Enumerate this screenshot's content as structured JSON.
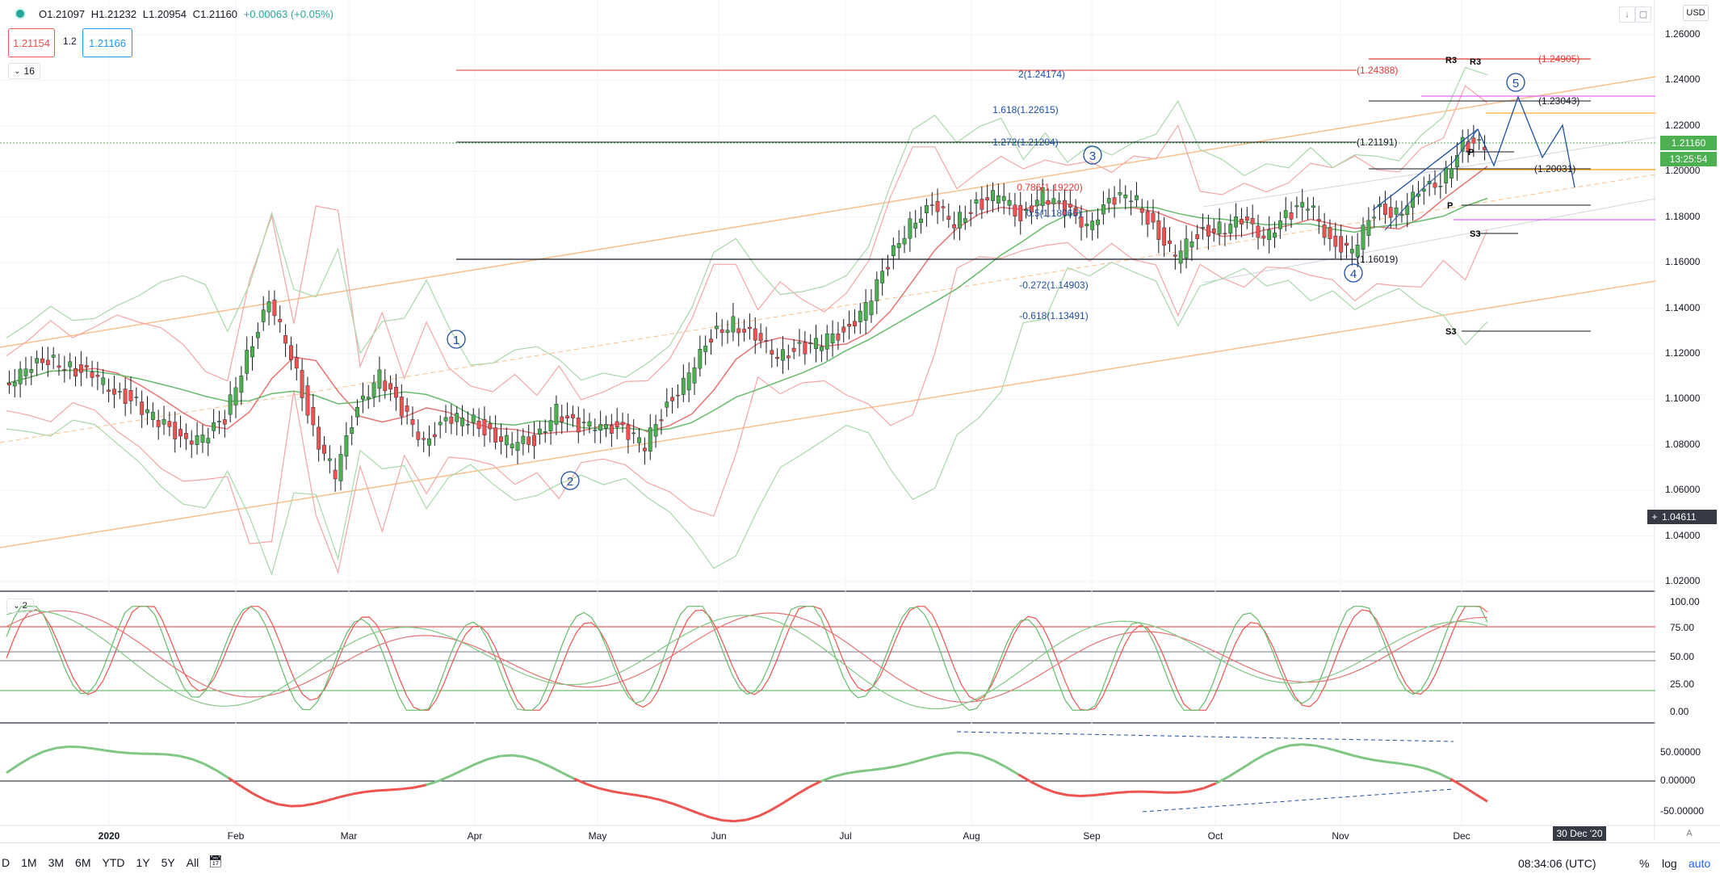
{
  "header": {
    "ohlc": {
      "o": "O1.21097",
      "h": "H1.21232",
      "l": "L1.20954",
      "c": "C1.21160",
      "chg": "+0.00063 (+0.05%)"
    },
    "bid": "1.21154",
    "spread": "1.2",
    "ask": "1.21166",
    "interval": "16",
    "currency": "USD"
  },
  "price_axis": {
    "labels": [
      "1.26000",
      "1.24000",
      "1.22000",
      "1.20000",
      "1.18000",
      "1.16000",
      "1.14000",
      "1.12000",
      "1.10000",
      "1.08000",
      "1.06000",
      "1.04000",
      "1.02000"
    ],
    "last_price": "1.21160",
    "countdown": "13:25:54",
    "crosshair": "1.04611"
  },
  "osc_axis": {
    "labels": [
      "100.00",
      "75.00",
      "50.00",
      "25.00",
      "0.00"
    ],
    "collapsed": "2"
  },
  "mom_axis": {
    "labels": [
      "50.00000",
      "0.00000",
      "-50.00000"
    ]
  },
  "time_axis": {
    "labels": [
      "2020",
      "Feb",
      "Mar",
      "Apr",
      "May",
      "Jun",
      "Jul",
      "Aug",
      "Sep",
      "Oct",
      "Nov",
      "Dec"
    ],
    "cursor": "30 Dec '20"
  },
  "bottom_bar": {
    "ranges": [
      "D",
      "1M",
      "3M",
      "6M",
      "YTD",
      "1Y",
      "5Y",
      "All"
    ],
    "clock": "08:34:06 (UTC)",
    "percent": "%",
    "log": "log",
    "auto": "auto"
  },
  "annotations": {
    "fib": [
      {
        "text": "2(1.24174)",
        "color": "#1e4fa3"
      },
      {
        "text": "1.618(1.22615)",
        "color": "#1e4fa3"
      },
      {
        "text": "1.272(1.21204)",
        "color": "#1e4fa3"
      },
      {
        "text": "0.786(1.19220)",
        "color": "#e53935"
      },
      {
        "text": "0.5(1.18065)",
        "color": "#1e4fa3"
      },
      {
        "text": "-0.272(1.14903)",
        "color": "#1e4fa3"
      },
      {
        "text": "-0.618(1.13491)",
        "color": "#1e4fa3"
      }
    ],
    "levels": [
      {
        "text": "(1.24388)",
        "color": "#e53935"
      },
      {
        "text": "(1.21191)",
        "color": "#131722"
      },
      {
        "text": "(1.16019)",
        "color": "#131722"
      },
      {
        "text": "(1.24905)",
        "color": "#e53935"
      },
      {
        "text": "(1.23043)",
        "color": "#131722"
      },
      {
        "text": "(1.20031)",
        "color": "#131722"
      }
    ],
    "pivots": [
      "R3",
      "R3",
      "P",
      "P",
      "S3",
      "S3"
    ],
    "waves": [
      "1",
      "2",
      "3",
      "4",
      "5"
    ]
  },
  "chart_data": {
    "type": "line",
    "title": "",
    "xlabel": "",
    "ylabel": "",
    "ylim": [
      1.01,
      1.265
    ],
    "x_ticks": [
      "2020",
      "Feb",
      "Mar",
      "Apr",
      "May",
      "Jun",
      "Jul",
      "Aug",
      "Sep",
      "Oct",
      "Nov",
      "Dec"
    ],
    "series": [
      {
        "values": [
          1.107,
          1.112,
          1.118,
          1.114,
          1.11,
          1.104,
          1.098,
          1.09,
          1.084,
          1.082,
          1.092,
          1.12,
          1.142,
          1.12,
          1.086,
          1.066,
          1.098,
          1.11,
          1.095,
          1.082,
          1.09,
          1.092,
          1.085,
          1.08,
          1.082,
          1.095,
          1.087,
          1.09,
          1.086,
          1.08,
          1.098,
          1.11,
          1.128,
          1.134,
          1.126,
          1.12,
          1.122,
          1.125,
          1.13,
          1.14,
          1.16,
          1.178,
          1.184,
          1.178,
          1.185,
          1.19,
          1.18,
          1.19,
          1.183,
          1.177,
          1.186,
          1.19,
          1.176,
          1.162,
          1.173,
          1.175,
          1.178,
          1.172,
          1.18,
          1.186,
          1.17,
          1.164,
          1.183,
          1.182,
          1.19,
          1.196,
          1.212,
          1.211
        ]
      }
    ],
    "wave_labels": [
      {
        "label": "1",
        "x": "Mar 9"
      },
      {
        "label": "2",
        "x": "Apr 24"
      },
      {
        "label": "3",
        "x": "Sep 1"
      },
      {
        "label": "4",
        "x": "Nov 4"
      },
      {
        "label": "5",
        "x": "Dec 15"
      }
    ]
  }
}
